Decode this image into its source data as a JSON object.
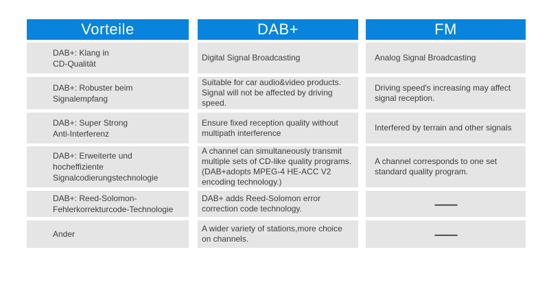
{
  "colors": {
    "accent": "#0884DC",
    "row_bg": "#E5E5E5",
    "text": "#3D3D3D"
  },
  "chart_data": {
    "type": "table",
    "columns": [
      "Vorteile",
      "DAB+",
      "FM"
    ],
    "rows": [
      [
        "DAB+: Klang in\nCD-Qualität",
        "Digital Signal Broadcasting",
        "Analog Signal Broadcasting"
      ],
      [
        "DAB+: Robuster beim\nSignalempfang",
        "Suitable for car audio&video products.\nSignal will not be affected by driving\nspeed.",
        "Driving speed's increasing may affect\nsignal reception."
      ],
      [
        "DAB+: Super Strong\nAnti-Interferenz",
        "Ensure fixed reception quality without\nmultipath interference",
        "Interfered by terrain and other signals"
      ],
      [
        "DAB+: Erweiterte und\nhocheffiziente\nSignalcodierungstechnologie",
        "A channel can simultaneously transmit\nmultiple sets of CD-like quality programs.\n(DAB+adopts MPEG-4 HE-ACC V2\nencoding technology.)",
        "A channel corresponds to one set\nstandard quality program."
      ],
      [
        "DAB+: Reed-Solomon-\nFehlerkorrekturcode-Technologie",
        "DAB+ adds Reed-Solomon error\ncorrection code technology.",
        "——"
      ],
      [
        "Ander",
        "A wider variety of stations,more choice\non channels.",
        "——"
      ]
    ]
  }
}
